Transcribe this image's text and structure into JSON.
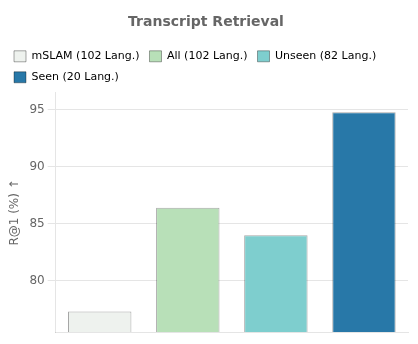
{
  "chart_data": {
    "type": "bar",
    "title": "Transcript Retrieval",
    "categories": [
      "mSLAM (102 Lang.)",
      "All (102 Lang.)",
      "Unseen (82 Lang.)",
      "Seen (20 Lang.)"
    ],
    "values": [
      77.3,
      86.4,
      84.0,
      94.8
    ],
    "colors": [
      "#eef2ee",
      "#b8e0b8",
      "#7ecece",
      "#2878a8"
    ],
    "ylabel": "R@1 (%) ↑",
    "ylim": [
      75.5,
      96.5
    ],
    "yticks": [
      80,
      85,
      90,
      95
    ],
    "grid": true,
    "legend": "upper left",
    "tick_labels": "y"
  }
}
